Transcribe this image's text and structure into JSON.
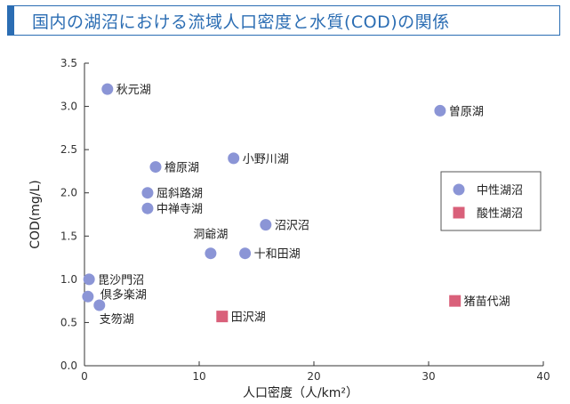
{
  "chart_data": {
    "type": "scatter",
    "title": "国内の湖沼における流域人口密度と水質(COD)の関係",
    "xlabel": "人口密度（人/km²）",
    "ylabel": "COD(mg/L)",
    "xlim": [
      0,
      40
    ],
    "ylim": [
      0.0,
      3.5
    ],
    "xticks": [
      "0",
      "10",
      "20",
      "30",
      "40"
    ],
    "yticks": [
      "0.0",
      "0.5",
      "1.0",
      "1.5",
      "2.0",
      "2.5",
      "3.0",
      "3.5"
    ],
    "legend_position": "right",
    "series": [
      {
        "name": "中性湖沼",
        "marker": "circle",
        "color": "#8b95d6",
        "points": [
          {
            "label": "秋元湖",
            "x": 2.0,
            "y": 3.2
          },
          {
            "label": "曽原湖",
            "x": 31.0,
            "y": 2.95
          },
          {
            "label": "檜原湖",
            "x": 6.2,
            "y": 2.3
          },
          {
            "label": "小野川湖",
            "x": 13.0,
            "y": 2.4
          },
          {
            "label": "屈斜路湖",
            "x": 5.5,
            "y": 2.0
          },
          {
            "label": "中禅寺湖",
            "x": 5.5,
            "y": 1.82
          },
          {
            "label": "沼沢沼",
            "x": 15.8,
            "y": 1.63
          },
          {
            "label": "洞爺湖",
            "x": 11.0,
            "y": 1.3
          },
          {
            "label": "十和田湖",
            "x": 14.0,
            "y": 1.3
          },
          {
            "label": "毘沙門沼",
            "x": 0.4,
            "y": 1.0
          },
          {
            "label": "倶多楽湖",
            "x": 0.3,
            "y": 0.8
          },
          {
            "label": "支笏湖",
            "x": 1.3,
            "y": 0.7
          }
        ]
      },
      {
        "name": "酸性湖沼",
        "marker": "square",
        "color": "#d9607a",
        "points": [
          {
            "label": "田沢湖",
            "x": 12.0,
            "y": 0.57
          },
          {
            "label": "猪苗代湖",
            "x": 32.3,
            "y": 0.75
          }
        ]
      }
    ]
  }
}
